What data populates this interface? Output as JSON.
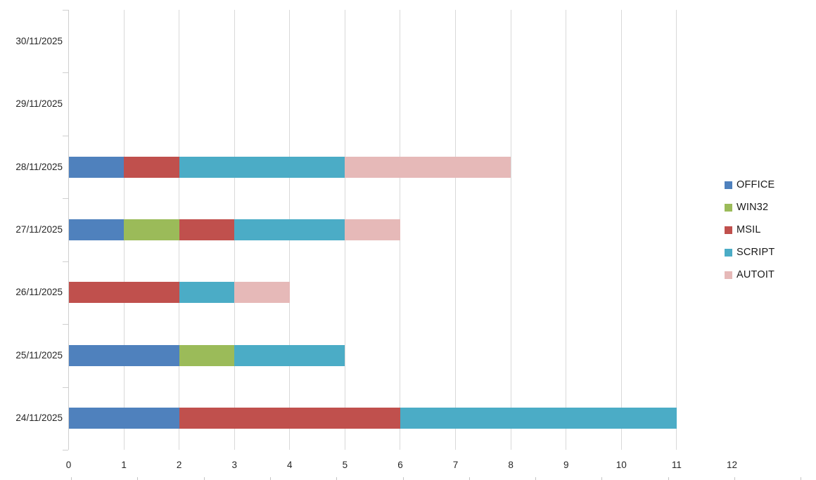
{
  "chart_data": {
    "type": "bar",
    "orientation": "horizontal",
    "stacked": true,
    "title": "",
    "xlabel": "",
    "ylabel": "",
    "categories": [
      "30/11/2025",
      "29/11/2025",
      "28/11/2025",
      "27/11/2025",
      "26/11/2025",
      "25/11/2025",
      "24/11/2025"
    ],
    "series": [
      {
        "name": "OFFICE",
        "color": "#4F81BD",
        "values": [
          0,
          0,
          1,
          1,
          0,
          2,
          2
        ]
      },
      {
        "name": "WIN32",
        "color": "#9BBB59",
        "values": [
          0,
          0,
          0,
          1,
          0,
          1,
          0
        ]
      },
      {
        "name": "MSIL",
        "color": "#C0504D",
        "values": [
          0,
          0,
          1,
          1,
          2,
          0,
          4
        ]
      },
      {
        "name": "SCRIPT",
        "color": "#4BACC6",
        "values": [
          0,
          0,
          3,
          2,
          1,
          2,
          5
        ]
      },
      {
        "name": "AUTOIT",
        "color": "#E6B9B8",
        "values": [
          0,
          0,
          3,
          1,
          1,
          0,
          0
        ]
      }
    ],
    "xlim": [
      0,
      12
    ],
    "xticks": [
      0,
      1,
      2,
      3,
      4,
      5,
      6,
      7,
      8,
      9,
      10,
      11,
      12
    ],
    "gridline_ticks": [
      0,
      1,
      2,
      3,
      4,
      5,
      6,
      7,
      8,
      9,
      10,
      11
    ],
    "grid": true,
    "legend_position": "right",
    "colors": {
      "gridline": "#d9d9d9",
      "axis": "#cfcfcf",
      "label_text": "#262626"
    }
  }
}
